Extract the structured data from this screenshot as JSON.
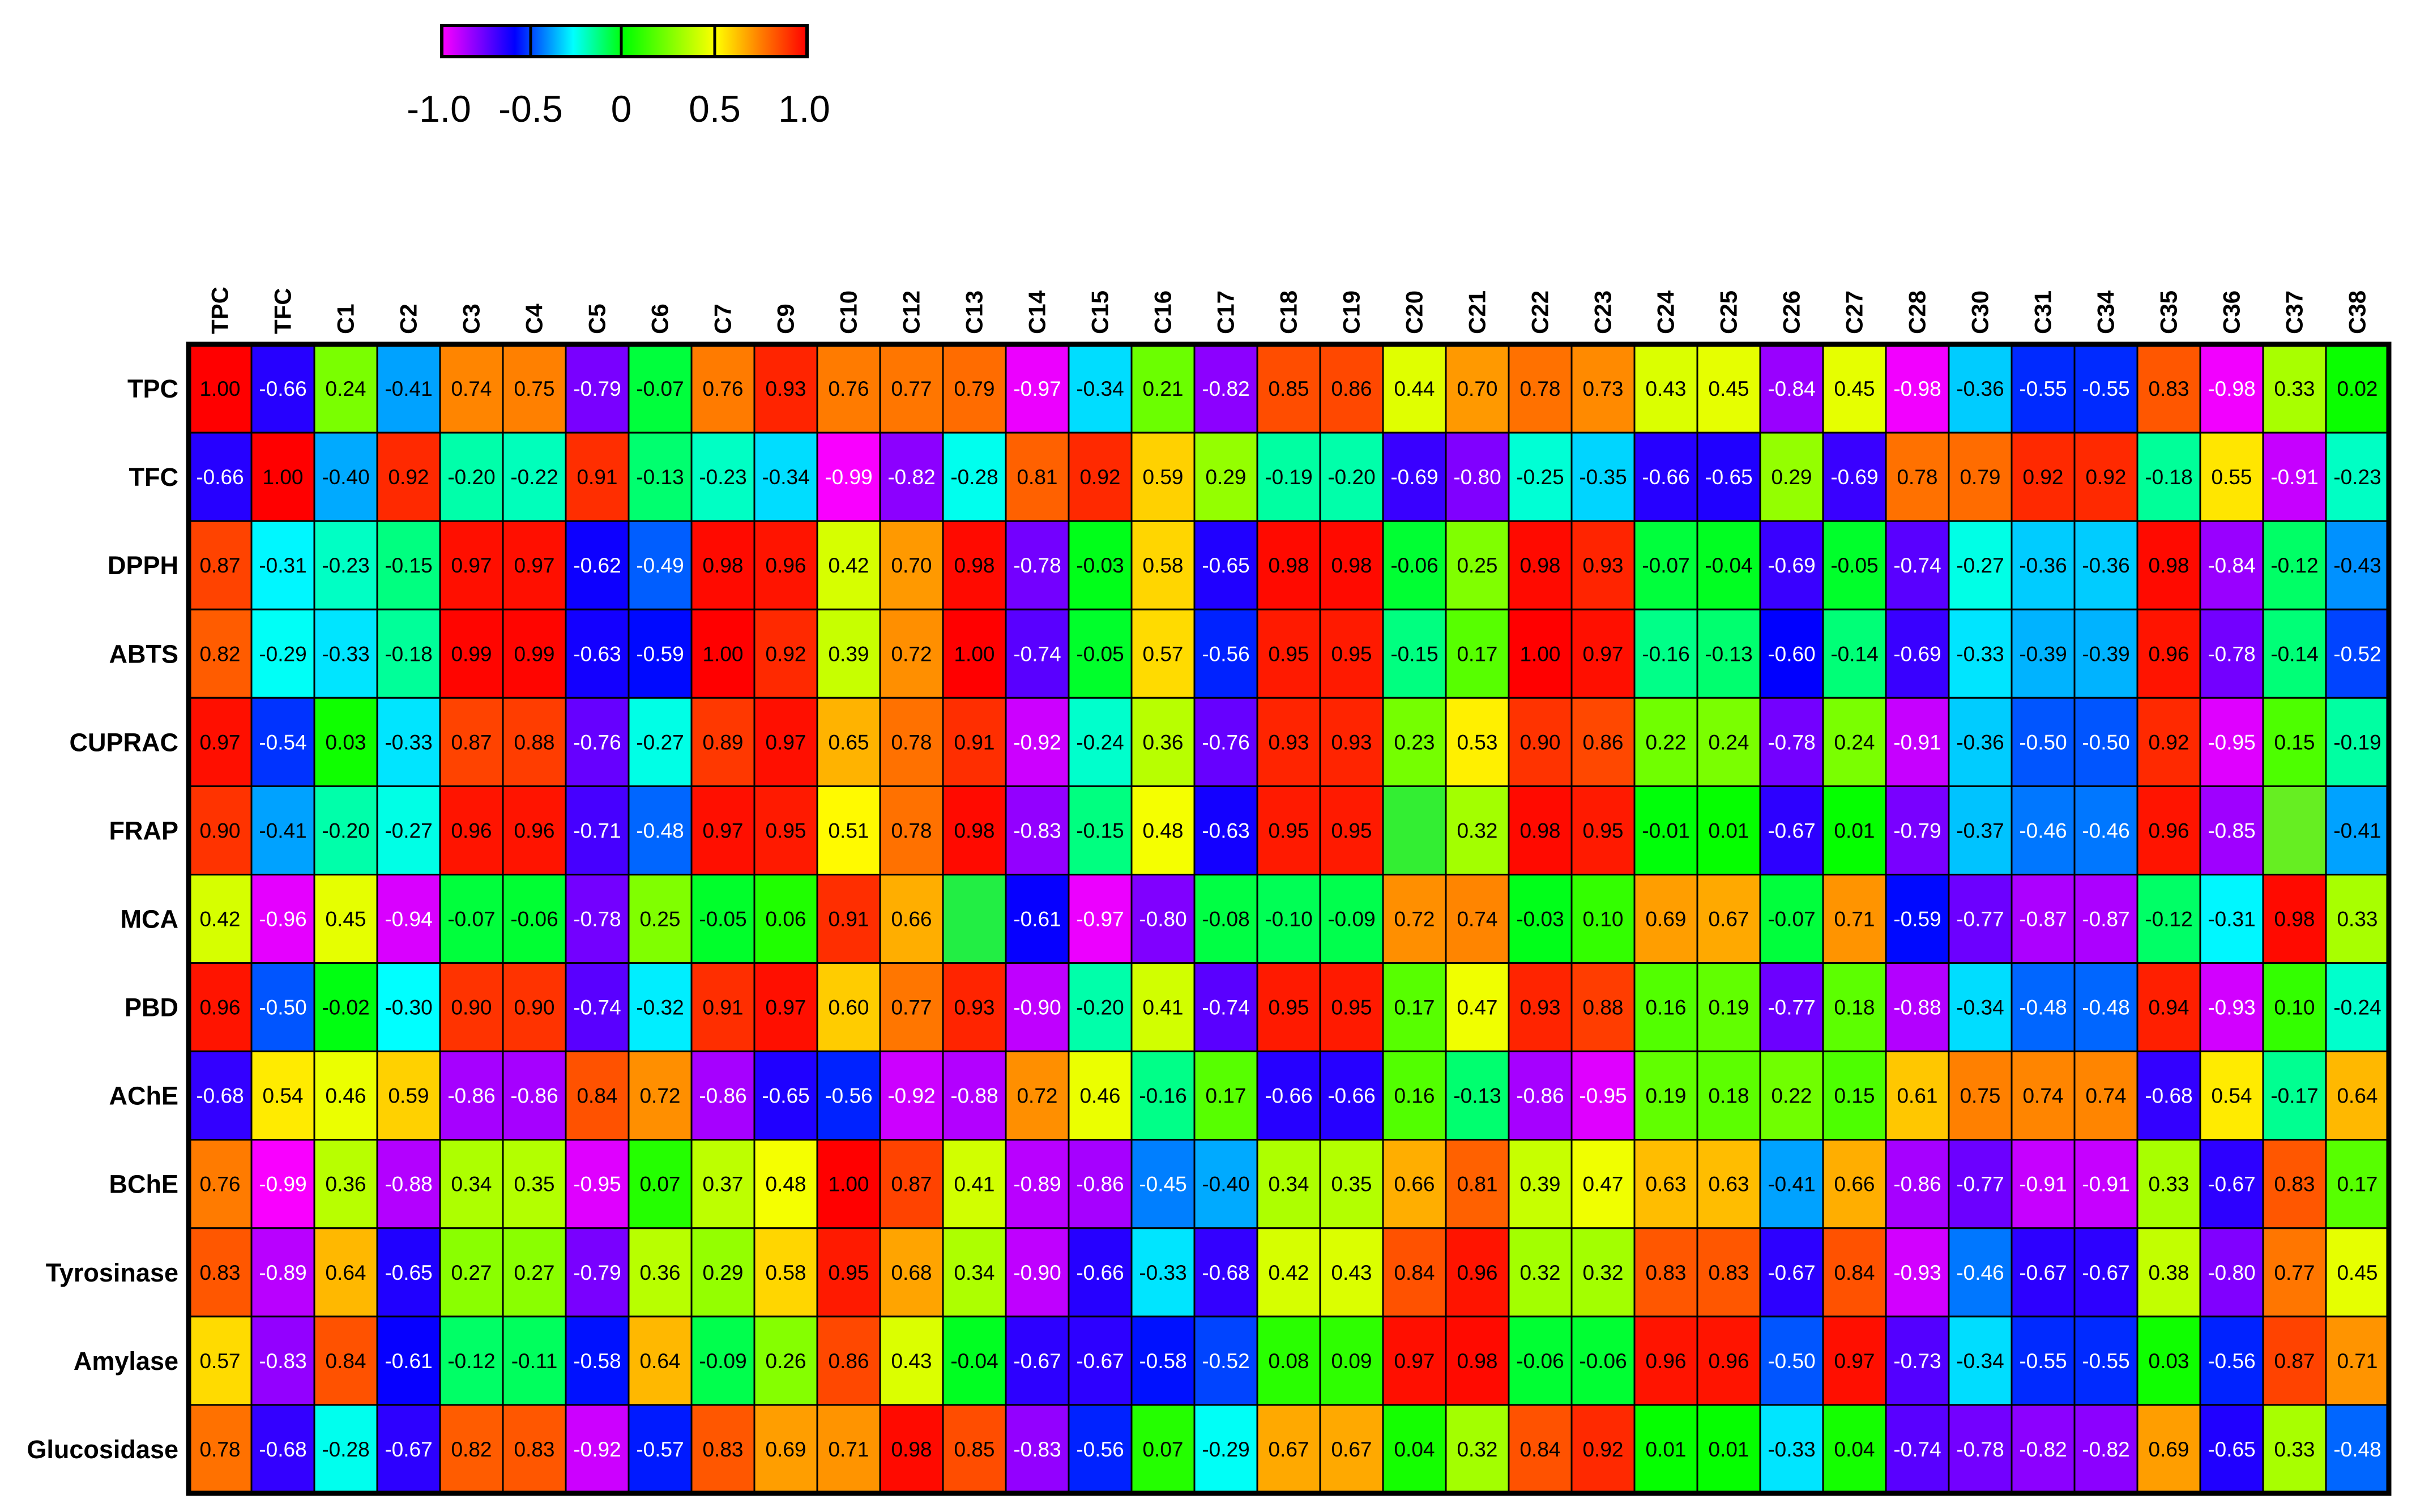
{
  "chart_data": {
    "type": "heatmap",
    "title": "",
    "xlabel": "",
    "ylabel": "",
    "columns": [
      "TPC",
      "TFC",
      "C1",
      "C2",
      "C3",
      "C4",
      "C5",
      "C6",
      "C7",
      "C9",
      "C10",
      "C12",
      "C13",
      "C14",
      "C15",
      "C16",
      "C17",
      "C18",
      "C19",
      "C20",
      "C21",
      "C22",
      "C23",
      "C24",
      "C25",
      "C26",
      "C27",
      "C28",
      "C30",
      "C31",
      "C34",
      "C35",
      "C36",
      "C37",
      "C38"
    ],
    "rows": [
      "TPC",
      "TFC",
      "DPPH",
      "ABTS",
      "CUPRAC",
      "FRAP",
      "MCA",
      "PBD",
      "AChE",
      "BChE",
      "Tyrosinase",
      "Amylase",
      "Glucosidase"
    ],
    "values": [
      [
        "1.00",
        "-0.66",
        "0.24",
        "-0.41",
        "0.74",
        "0.75",
        "-0.79",
        "-0.07",
        "0.76",
        "0.93",
        "0.76",
        "0.77",
        "0.79",
        "-0.97",
        "-0.34",
        "0.21",
        "-0.82",
        "0.85",
        "0.86",
        "0.44",
        "0.70",
        "0.78",
        "0.73",
        "0.43",
        "0.45",
        "-0.84",
        "0.45",
        "-0.98",
        "-0.36",
        "-0.55",
        "-0.55",
        "0.83",
        "-0.98",
        "0.33",
        "0.02"
      ],
      [
        "-0.66",
        "1.00",
        "-0.40",
        "0.92",
        "-0.20",
        "-0.22",
        "0.91",
        "-0.13",
        "-0.23",
        "-0.34",
        "-0.99",
        "-0.82",
        "-0.28",
        "0.81",
        "0.92",
        "0.59",
        "0.29",
        "-0.19",
        "-0.20",
        "-0.69",
        "-0.80",
        "-0.25",
        "-0.35",
        "-0.66",
        "-0.65",
        "0.29",
        "-0.69",
        "0.78",
        "0.79",
        "0.92",
        "0.92",
        "-0.18",
        "0.55",
        "-0.91",
        "-0.23"
      ],
      [
        "0.87",
        "-0.31",
        "-0.23",
        "-0.15",
        "0.97",
        "0.97",
        "-0.62",
        "-0.49",
        "0.98",
        "0.96",
        "0.42",
        "0.70",
        "0.98",
        "-0.78",
        "-0.03",
        "0.58",
        "-0.65",
        "0.98",
        "0.98",
        "-0.06",
        "0.25",
        "0.98",
        "0.93",
        "-0.07",
        "-0.04",
        "-0.69",
        "-0.05",
        "-0.74",
        "-0.27",
        "-0.36",
        "-0.36",
        "0.98",
        "-0.84",
        "-0.12",
        "-0.43"
      ],
      [
        "0.82",
        "-0.29",
        "-0.33",
        "-0.18",
        "0.99",
        "0.99",
        "-0.63",
        "-0.59",
        "1.00",
        "0.92",
        "0.39",
        "0.72",
        "1.00",
        "-0.74",
        "-0.05",
        "0.57",
        "-0.56",
        "0.95",
        "0.95",
        "-0.15",
        "0.17",
        "1.00",
        "0.97",
        "-0.16",
        "-0.13",
        "-0.60",
        "-0.14",
        "-0.69",
        "-0.33",
        "-0.39",
        "-0.39",
        "0.96",
        "-0.78",
        "-0.14",
        "-0.52"
      ],
      [
        "0.97",
        "-0.54",
        "0.03",
        "-0.33",
        "0.87",
        "0.88",
        "-0.76",
        "-0.27",
        "0.89",
        "0.97",
        "0.65",
        "0.78",
        "0.91",
        "-0.92",
        "-0.24",
        "0.36",
        "-0.76",
        "0.93",
        "0.93",
        "0.23",
        "0.53",
        "0.90",
        "0.86",
        "0.22",
        "0.24",
        "-0.78",
        "0.24",
        "-0.91",
        "-0.36",
        "-0.50",
        "-0.50",
        "0.92",
        "-0.95",
        "0.15",
        "-0.19"
      ],
      [
        "0.90",
        "-0.41",
        "-0.20",
        "-0.27",
        "0.96",
        "0.96",
        "-0.71",
        "-0.48",
        "0.97",
        "0.95",
        "0.51",
        "0.78",
        "0.98",
        "-0.83",
        "-0.15",
        "0.48",
        "-0.63",
        "0.95",
        "0.95",
        "",
        "0.32",
        "0.98",
        "0.95",
        "-0.01",
        "0.01",
        "-0.67",
        "0.01",
        "-0.79",
        "-0.37",
        "-0.46",
        "-0.46",
        "0.96",
        "-0.85",
        "",
        "-0.41"
      ],
      [
        "0.42",
        "-0.96",
        "0.45",
        "-0.94",
        "-0.07",
        "-0.06",
        "-0.78",
        "0.25",
        "-0.05",
        "0.06",
        "0.91",
        "0.66",
        "",
        "-0.61",
        "-0.97",
        "-0.80",
        "-0.08",
        "-0.10",
        "-0.09",
        "0.72",
        "0.74",
        "-0.03",
        "0.10",
        "0.69",
        "0.67",
        "-0.07",
        "0.71",
        "-0.59",
        "-0.77",
        "-0.87",
        "-0.87",
        "-0.12",
        "-0.31",
        "0.98",
        "0.33"
      ],
      [
        "0.96",
        "-0.50",
        "-0.02",
        "-0.30",
        "0.90",
        "0.90",
        "-0.74",
        "-0.32",
        "0.91",
        "0.97",
        "0.60",
        "0.77",
        "0.93",
        "-0.90",
        "-0.20",
        "0.41",
        "-0.74",
        "0.95",
        "0.95",
        "0.17",
        "0.47",
        "0.93",
        "0.88",
        "0.16",
        "0.19",
        "-0.77",
        "0.18",
        "-0.88",
        "-0.34",
        "-0.48",
        "-0.48",
        "0.94",
        "-0.93",
        "0.10",
        "-0.24"
      ],
      [
        "-0.68",
        "0.54",
        "0.46",
        "0.59",
        "-0.86",
        "-0.86",
        "0.84",
        "0.72",
        "-0.86",
        "-0.65",
        "-0.56",
        "-0.92",
        "-0.88",
        "0.72",
        "0.46",
        "-0.16",
        "0.17",
        "-0.66",
        "-0.66",
        "0.16",
        "-0.13",
        "-0.86",
        "-0.95",
        "0.19",
        "0.18",
        "0.22",
        "0.15",
        "0.61",
        "0.75",
        "0.74",
        "0.74",
        "-0.68",
        "0.54",
        "-0.17",
        "0.64"
      ],
      [
        "0.76",
        "-0.99",
        "0.36",
        "-0.88",
        "0.34",
        "0.35",
        "-0.95",
        "0.07",
        "0.37",
        "0.48",
        "1.00",
        "0.87",
        "0.41",
        "-0.89",
        "-0.86",
        "-0.45",
        "-0.40",
        "0.34",
        "0.35",
        "0.66",
        "0.81",
        "0.39",
        "0.47",
        "0.63",
        "0.63",
        "-0.41",
        "0.66",
        "-0.86",
        "-0.77",
        "-0.91",
        "-0.91",
        "0.33",
        "-0.67",
        "0.83",
        "0.17"
      ],
      [
        "0.83",
        "-0.89",
        "0.64",
        "-0.65",
        "0.27",
        "0.27",
        "-0.79",
        "0.36",
        "0.29",
        "0.58",
        "0.95",
        "0.68",
        "0.34",
        "-0.90",
        "-0.66",
        "-0.33",
        "-0.68",
        "0.42",
        "0.43",
        "0.84",
        "0.96",
        "0.32",
        "0.32",
        "0.83",
        "0.83",
        "-0.67",
        "0.84",
        "-0.93",
        "-0.46",
        "-0.67",
        "-0.67",
        "0.38",
        "-0.80",
        "0.77",
        "0.45"
      ],
      [
        "0.57",
        "-0.83",
        "0.84",
        "-0.61",
        "-0.12",
        "-0.11",
        "-0.58",
        "0.64",
        "-0.09",
        "0.26",
        "0.86",
        "0.43",
        "-0.04",
        "-0.67",
        "-0.67",
        "-0.58",
        "-0.52",
        "0.08",
        "0.09",
        "0.97",
        "0.98",
        "-0.06",
        "-0.06",
        "0.96",
        "0.96",
        "-0.50",
        "0.97",
        "-0.73",
        "-0.34",
        "-0.55",
        "-0.55",
        "0.03",
        "-0.56",
        "0.87",
        "0.71"
      ],
      [
        "0.78",
        "-0.68",
        "-0.28",
        "-0.67",
        "0.82",
        "0.83",
        "-0.92",
        "-0.57",
        "0.83",
        "0.69",
        "0.71",
        "0.98",
        "0.85",
        "-0.83",
        "-0.56",
        "0.07",
        "-0.29",
        "0.67",
        "0.67",
        "0.04",
        "0.32",
        "0.84",
        "0.92",
        "0.01",
        "0.01",
        "-0.33",
        "0.04",
        "-0.74",
        "-0.78",
        "-0.82",
        "-0.82",
        "0.69",
        "-0.65",
        "0.33",
        "-0.48"
      ]
    ],
    "empty_cell_colors": {
      "5-19": "#33ee33",
      "5-33": "#66ee22",
      "6-12": "#22ee44"
    },
    "colorbar": {
      "range": [
        -1.0,
        1.0
      ],
      "ticks": [
        "-1.0",
        "-0.5",
        "0",
        "0.5",
        "1.0"
      ],
      "colors": [
        "#ff00ff",
        "#0000ff",
        "#00ffff",
        "#00ff00",
        "#ffff00",
        "#ff8000",
        "#ff0000"
      ]
    }
  }
}
